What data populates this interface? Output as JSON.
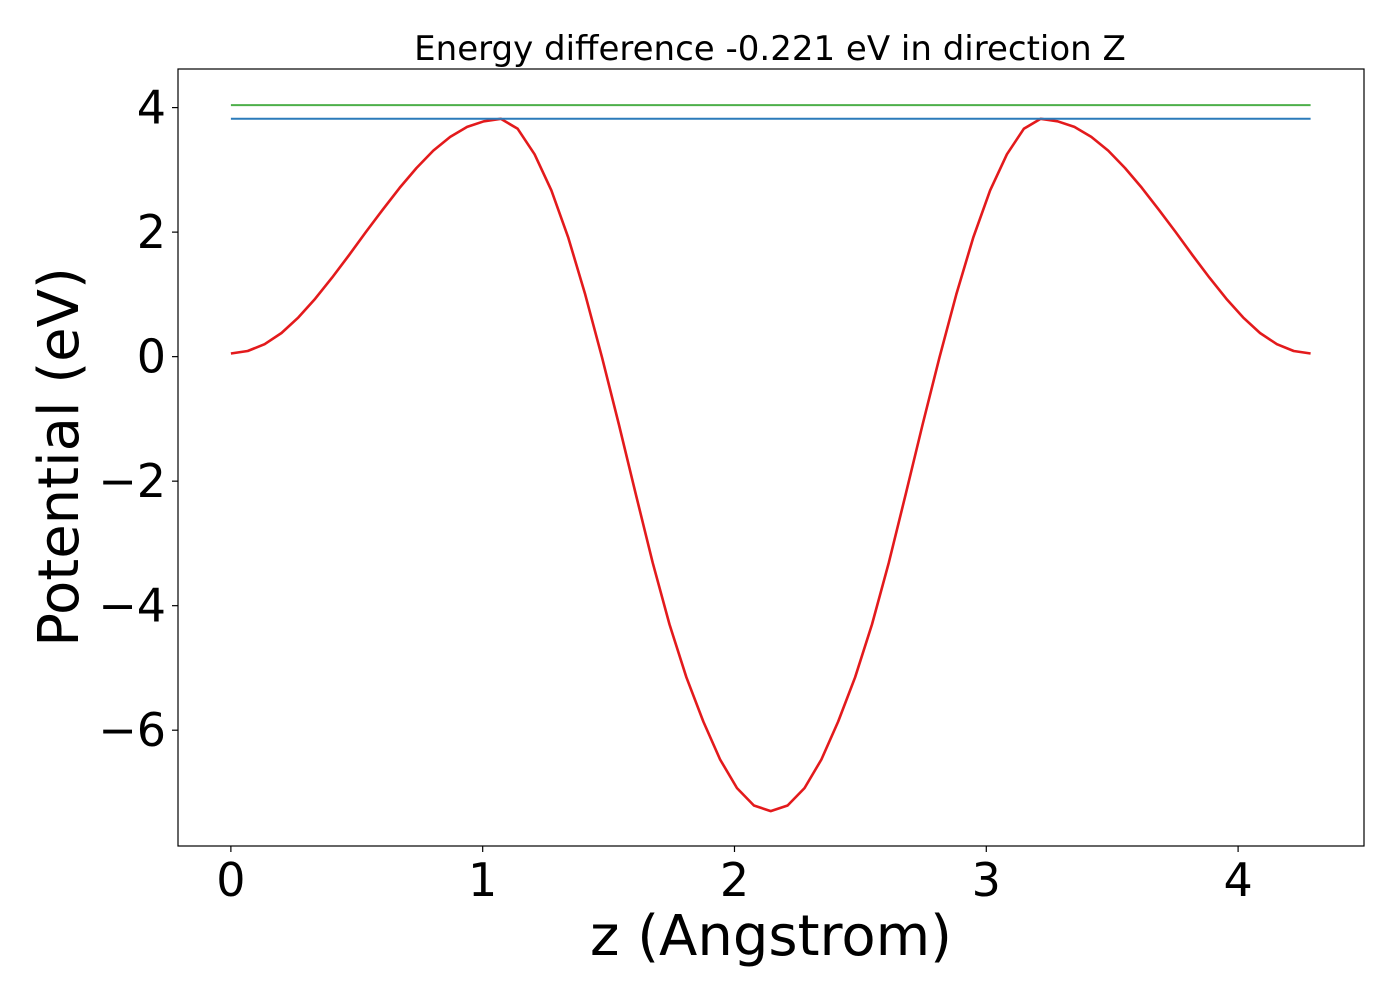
{
  "chart_data": {
    "type": "line",
    "title": "Energy difference -0.221 eV in direction Z",
    "xlabel": "z (Angstrom)",
    "ylabel": "Potential (eV)",
    "xlim": [
      -0.21,
      4.5
    ],
    "ylim": [
      -7.86,
      4.62
    ],
    "xticks": [
      0,
      1,
      2,
      3,
      4
    ],
    "yticks": [
      -6,
      -4,
      -2,
      0,
      2,
      4
    ],
    "xtick_labels": [
      "0",
      "1",
      "2",
      "3",
      "4"
    ],
    "ytick_labels": [
      "−6",
      "−4",
      "−2",
      "0",
      "2",
      "4"
    ],
    "grid": false,
    "series": [
      {
        "color": "#e31a1c",
        "x": [
          0.0,
          0.067,
          0.134,
          0.201,
          0.268,
          0.335,
          0.402,
          0.469,
          0.536,
          0.603,
          0.67,
          0.737,
          0.804,
          0.871,
          0.938,
          1.005,
          1.072,
          1.139,
          1.206,
          1.273,
          1.34,
          1.407,
          1.474,
          1.541,
          1.608,
          1.675,
          1.742,
          1.809,
          1.876,
          1.943,
          2.01,
          2.077,
          2.144,
          2.211,
          2.278,
          2.345,
          2.412,
          2.479,
          2.546,
          2.613,
          2.68,
          2.747,
          2.814,
          2.881,
          2.948,
          3.015,
          3.082,
          3.149,
          3.216,
          3.283,
          3.35,
          3.417,
          3.484,
          3.551,
          3.618,
          3.685,
          3.752,
          3.819,
          3.886,
          3.953,
          4.02,
          4.087,
          4.154,
          4.221,
          4.288
        ],
        "y": [
          0.05,
          0.09,
          0.2,
          0.38,
          0.63,
          0.93,
          1.27,
          1.63,
          2.0,
          2.36,
          2.71,
          3.03,
          3.31,
          3.53,
          3.69,
          3.78,
          3.82,
          3.66,
          3.25,
          2.67,
          1.91,
          1.0,
          -0.01,
          -1.09,
          -2.21,
          -3.31,
          -4.3,
          -5.15,
          -5.86,
          -6.47,
          -6.93,
          -7.21,
          -7.3,
          -7.21,
          -6.93,
          -6.47,
          -5.86,
          -5.15,
          -4.3,
          -3.31,
          -2.21,
          -1.09,
          -0.01,
          1.0,
          1.91,
          2.67,
          3.25,
          3.66,
          3.82,
          3.78,
          3.69,
          3.53,
          3.31,
          3.03,
          2.71,
          2.36,
          2.0,
          1.63,
          1.27,
          0.93,
          0.63,
          0.38,
          0.2,
          0.09,
          0.05
        ]
      },
      {
        "color": "#2b7bba",
        "x": [
          0.0,
          4.288
        ],
        "y": [
          3.82,
          3.82
        ]
      },
      {
        "color": "#4daf4a",
        "x": [
          0.0,
          4.288
        ],
        "y": [
          4.04,
          4.04
        ]
      }
    ]
  }
}
